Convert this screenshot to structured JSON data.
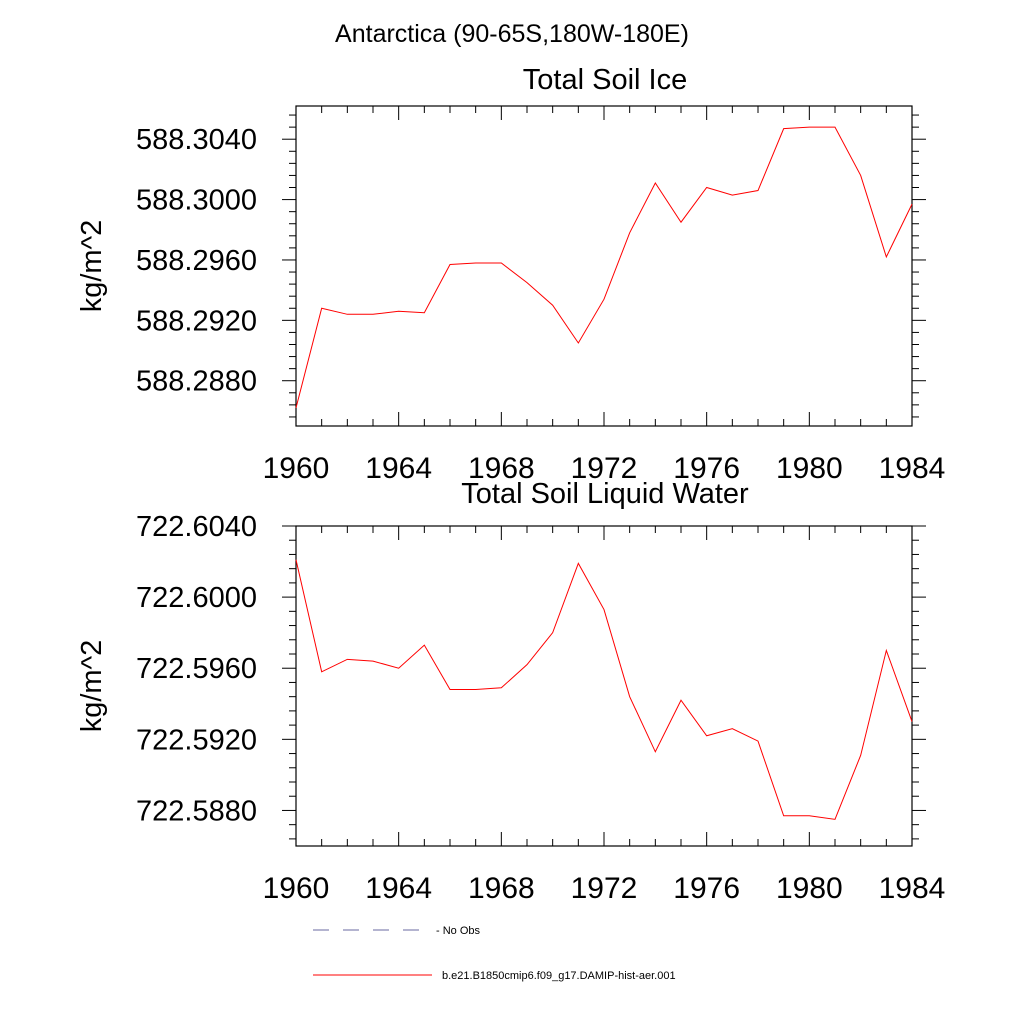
{
  "suptitle": "Antarctica (90-65S,180W-180E)",
  "chart_data": [
    {
      "type": "line",
      "title": "Total Soil Ice",
      "ylabel": "kg/m^2",
      "xlabel": "",
      "xlim": [
        1960,
        1984
      ],
      "ylim": [
        588.285,
        588.3062
      ],
      "xticks": [
        "1960",
        "1964",
        "1968",
        "1972",
        "1976",
        "1980",
        "1984"
      ],
      "yticks": [
        "588.2880",
        "588.2920",
        "588.2960",
        "588.3000",
        "588.3040"
      ],
      "series": [
        {
          "name": "b.e21.B1850cmip6.f09_g17.DAMIP-hist-aer.001",
          "color": "#ff0000",
          "x": [
            1960,
            1961,
            1962,
            1963,
            1964,
            1965,
            1966,
            1967,
            1968,
            1969,
            1970,
            1971,
            1972,
            1973,
            1974,
            1975,
            1976,
            1977,
            1978,
            1979,
            1980,
            1981,
            1982,
            1983,
            1984
          ],
          "y": [
            588.2862,
            588.2928,
            588.2924,
            588.2924,
            588.2926,
            588.2925,
            588.2957,
            588.2958,
            588.2958,
            588.2945,
            588.293,
            588.2905,
            588.2934,
            588.2978,
            588.3011,
            588.2985,
            588.3008,
            588.3003,
            588.3006,
            588.3047,
            588.3048,
            588.3048,
            588.3016,
            588.2962,
            588.2997
          ]
        }
      ]
    },
    {
      "type": "line",
      "title": "Total Soil Liquid Water",
      "ylabel": "kg/m^2",
      "xlabel": "",
      "xlim": [
        1960,
        1984
      ],
      "ylim": [
        722.586,
        722.604
      ],
      "xticks": [
        "1960",
        "1964",
        "1968",
        "1972",
        "1976",
        "1980",
        "1984"
      ],
      "yticks": [
        "722.5880",
        "722.5920",
        "722.5960",
        "722.6000",
        "722.6040"
      ],
      "series": [
        {
          "name": "b.e21.B1850cmip6.f09_g17.DAMIP-hist-aer.001",
          "color": "#ff0000",
          "x": [
            1960,
            1961,
            1962,
            1963,
            1964,
            1965,
            1966,
            1967,
            1968,
            1969,
            1970,
            1971,
            1972,
            1973,
            1974,
            1975,
            1976,
            1977,
            1978,
            1979,
            1980,
            1981,
            1982,
            1983,
            1984
          ],
          "y": [
            722.6021,
            722.5958,
            722.5965,
            722.5964,
            722.596,
            722.5973,
            722.5948,
            722.5948,
            722.5949,
            722.5962,
            722.598,
            722.6019,
            722.5993,
            722.5944,
            722.5913,
            722.5942,
            722.5922,
            722.5926,
            722.5919,
            722.5877,
            722.5877,
            722.5875,
            722.5911,
            722.597,
            722.593
          ]
        }
      ]
    }
  ],
  "legend": [
    {
      "label": "No Obs",
      "color": "#6a6aa0",
      "style": "dashed"
    },
    {
      "label": "b.e21.B1850cmip6.f09_g17.DAMIP-hist-aer.001",
      "color": "#ff0000",
      "style": "solid"
    }
  ]
}
